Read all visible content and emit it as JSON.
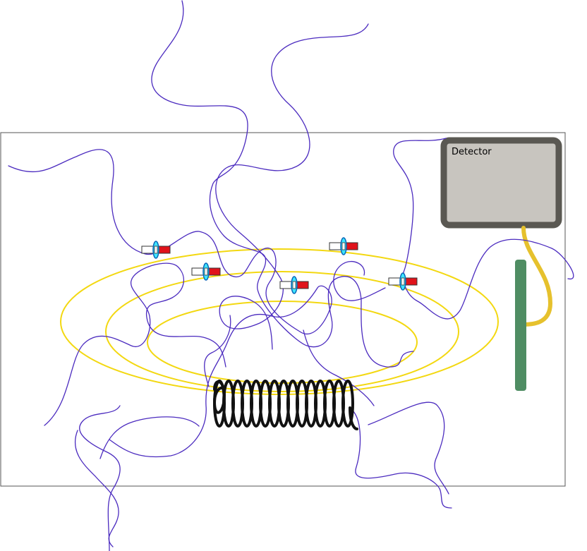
{
  "detector": {
    "label": "Detector"
  },
  "colors": {
    "frame": "#555555",
    "field_lines": "#f3d811",
    "noise_paths": "#4b2bbf",
    "detector_border": "#5a5852",
    "detector_fill": "#c8c5bf",
    "cable": "#e6c12d",
    "probe_rod": "#4f8d63",
    "coil": "#111111",
    "magnet_red": "#e0131b",
    "magnet_white": "#ffffff",
    "magnet_ring": "#3ee6ff"
  },
  "icons": {
    "magnet": "magnet-icon",
    "coil": "coil-icon",
    "detector": "detector-box",
    "probe": "probe-rod"
  }
}
